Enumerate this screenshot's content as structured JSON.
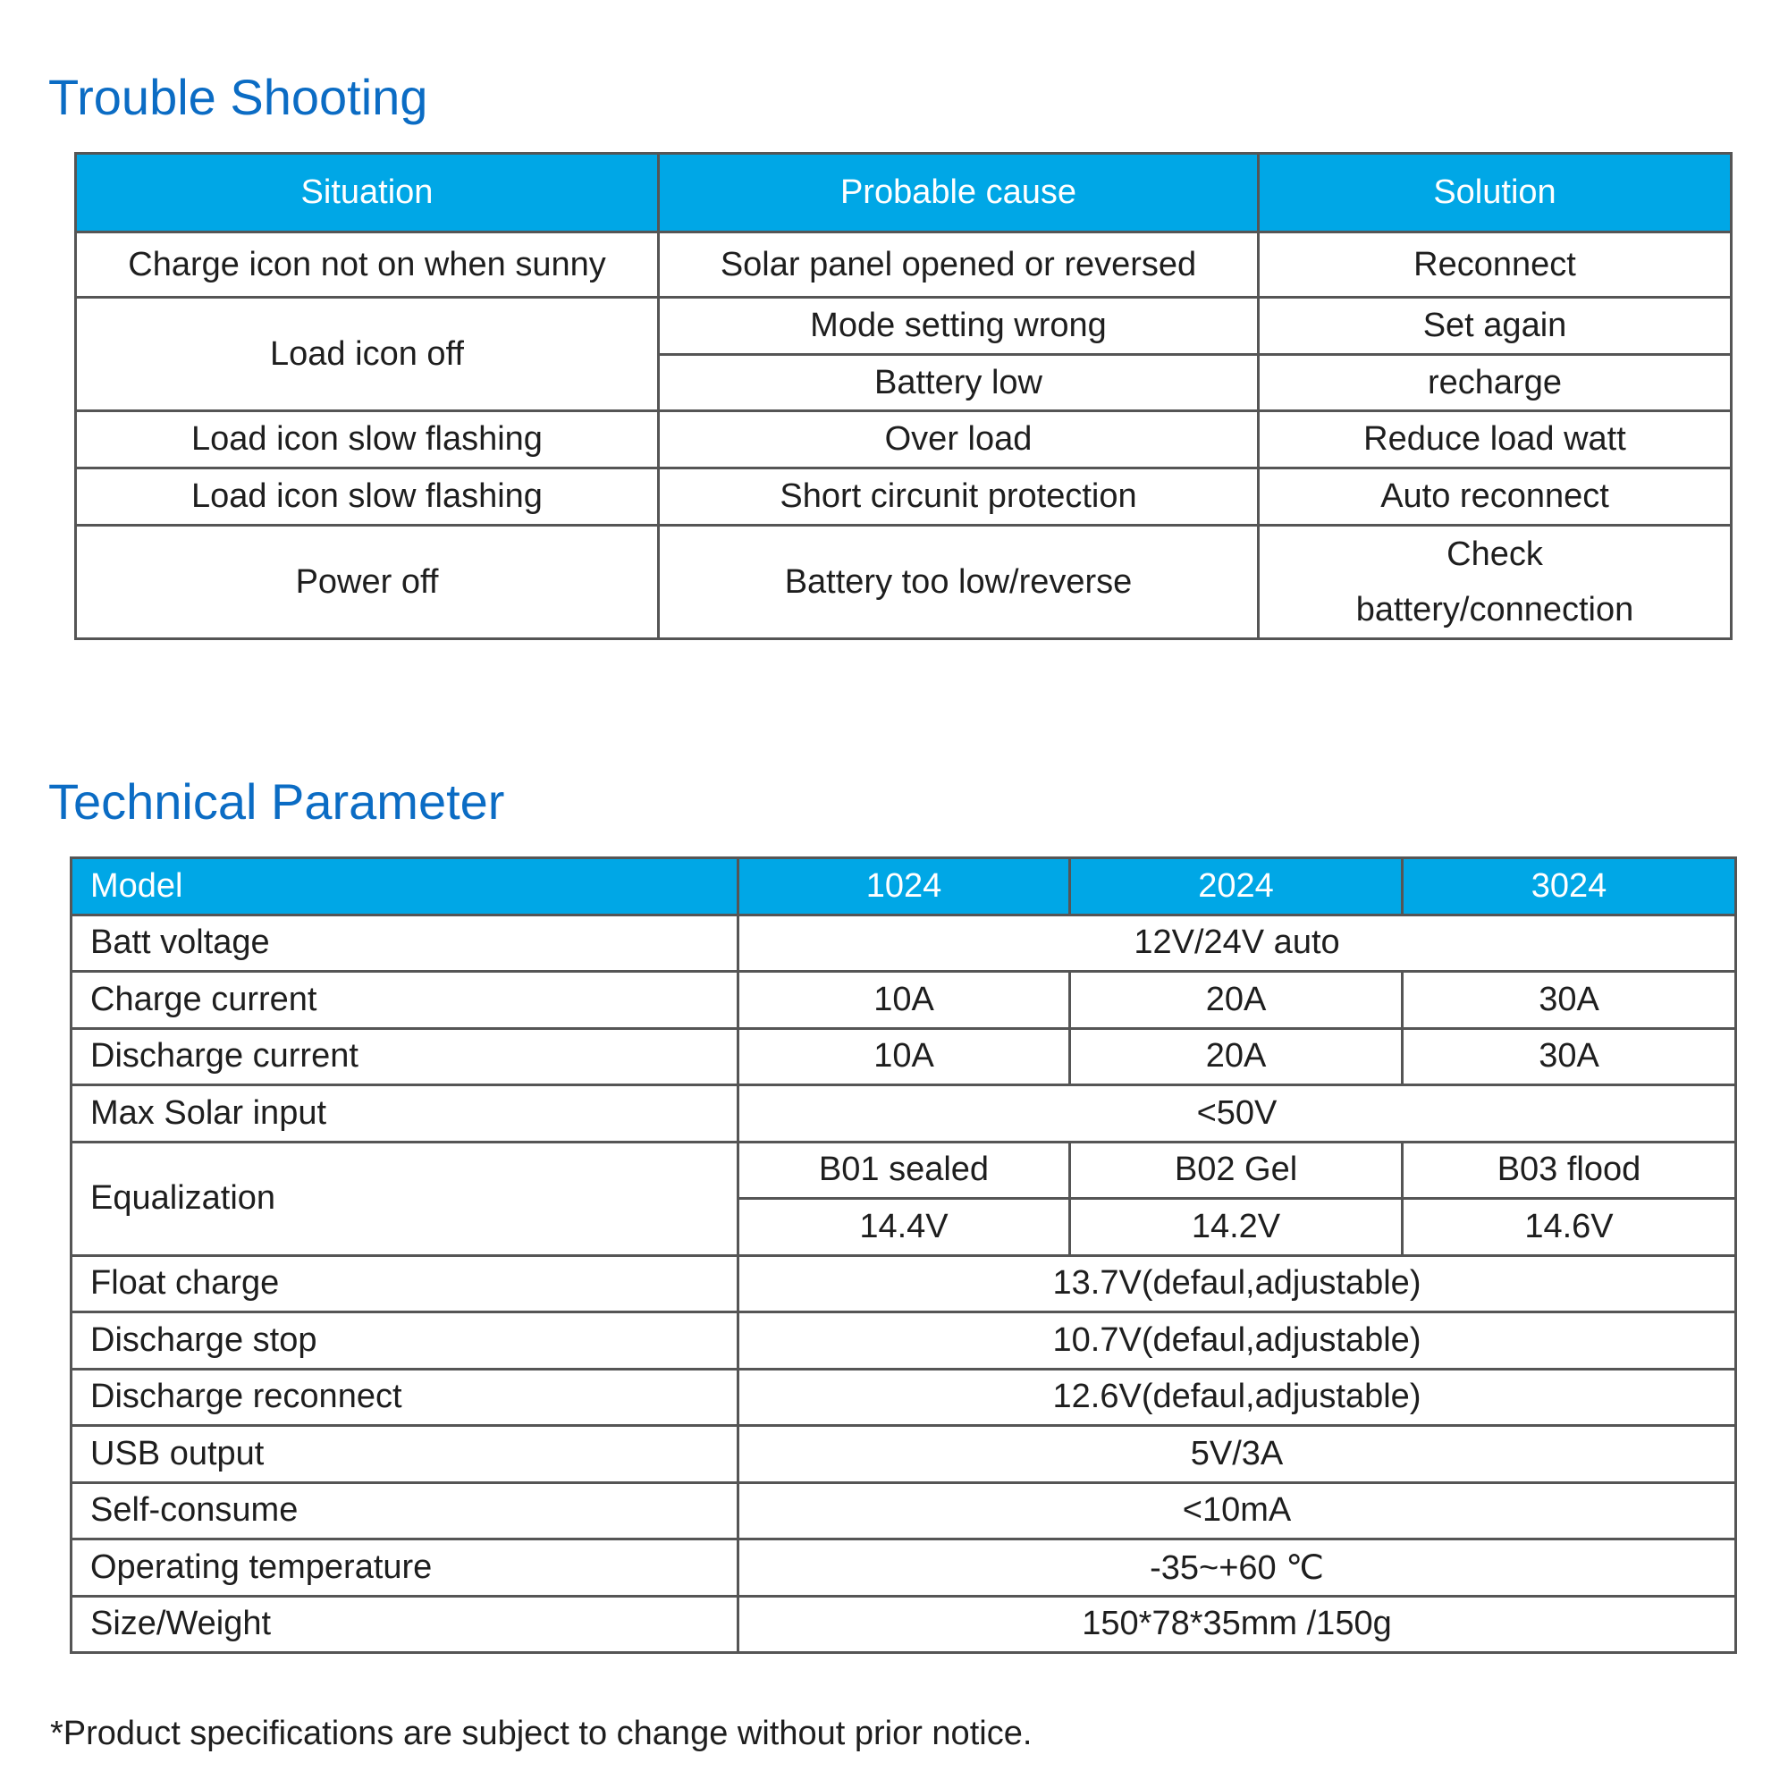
{
  "colors": {
    "title": "#0b6cc4",
    "header_bg": "#00a7e6",
    "header_text": "#ffffff"
  },
  "troubleshooting": {
    "title": "Trouble Shooting",
    "headers": [
      "Situation",
      "Probable cause",
      "Solution"
    ],
    "rows": [
      {
        "situation": "Charge icon not on when sunny",
        "cause": "Solar panel opened or reversed",
        "solution": "Reconnect"
      },
      {
        "situation": "Load icon off",
        "cause": "Mode setting wrong",
        "solution": "Set again"
      },
      {
        "cause": "Battery low",
        "solution": "recharge"
      },
      {
        "situation": "Load icon slow flashing",
        "cause": "Over load",
        "solution": "Reduce load watt"
      },
      {
        "situation": "Load icon slow flashing",
        "cause": "Short circunit protection",
        "solution": "Auto reconnect"
      },
      {
        "situation": "Power off",
        "cause": "Battery too low/reverse",
        "solution": "Check battery/connection"
      }
    ]
  },
  "technical": {
    "title": "Technical Parameter",
    "headers": [
      "Model",
      "1024",
      "2024",
      "3024"
    ],
    "batt_voltage": {
      "label": "Batt voltage",
      "value": "12V/24V auto"
    },
    "charge_current": {
      "label": "Charge current",
      "values": [
        "10A",
        "20A",
        "30A"
      ]
    },
    "discharge_current": {
      "label": "Discharge current",
      "values": [
        "10A",
        "20A",
        "30A"
      ]
    },
    "max_solar": {
      "label": "Max Solar input",
      "value": "<50V"
    },
    "equalization": {
      "label": "Equalization",
      "types": [
        "B01 sealed",
        "B02 Gel",
        "B03 flood"
      ],
      "values": [
        "14.4V",
        "14.2V",
        "14.6V"
      ]
    },
    "float_charge": {
      "label": "Float charge",
      "value": "13.7V(defaul,adjustable)"
    },
    "discharge_stop": {
      "label": "Discharge stop",
      "value": "10.7V(defaul,adjustable)"
    },
    "discharge_reconnect": {
      "label": "Discharge reconnect",
      "value": "12.6V(defaul,adjustable)"
    },
    "usb_output": {
      "label": "USB output",
      "value": "5V/3A"
    },
    "self_consume": {
      "label": "Self-consume",
      "value": "<10mA"
    },
    "operating_temp": {
      "label": "Operating temperature",
      "value": "-35~+60 ℃"
    },
    "size_weight": {
      "label": "Size/Weight",
      "value": "150*78*35mm /150g"
    }
  },
  "footnote": "*Product specifications are subject to change without prior notice."
}
